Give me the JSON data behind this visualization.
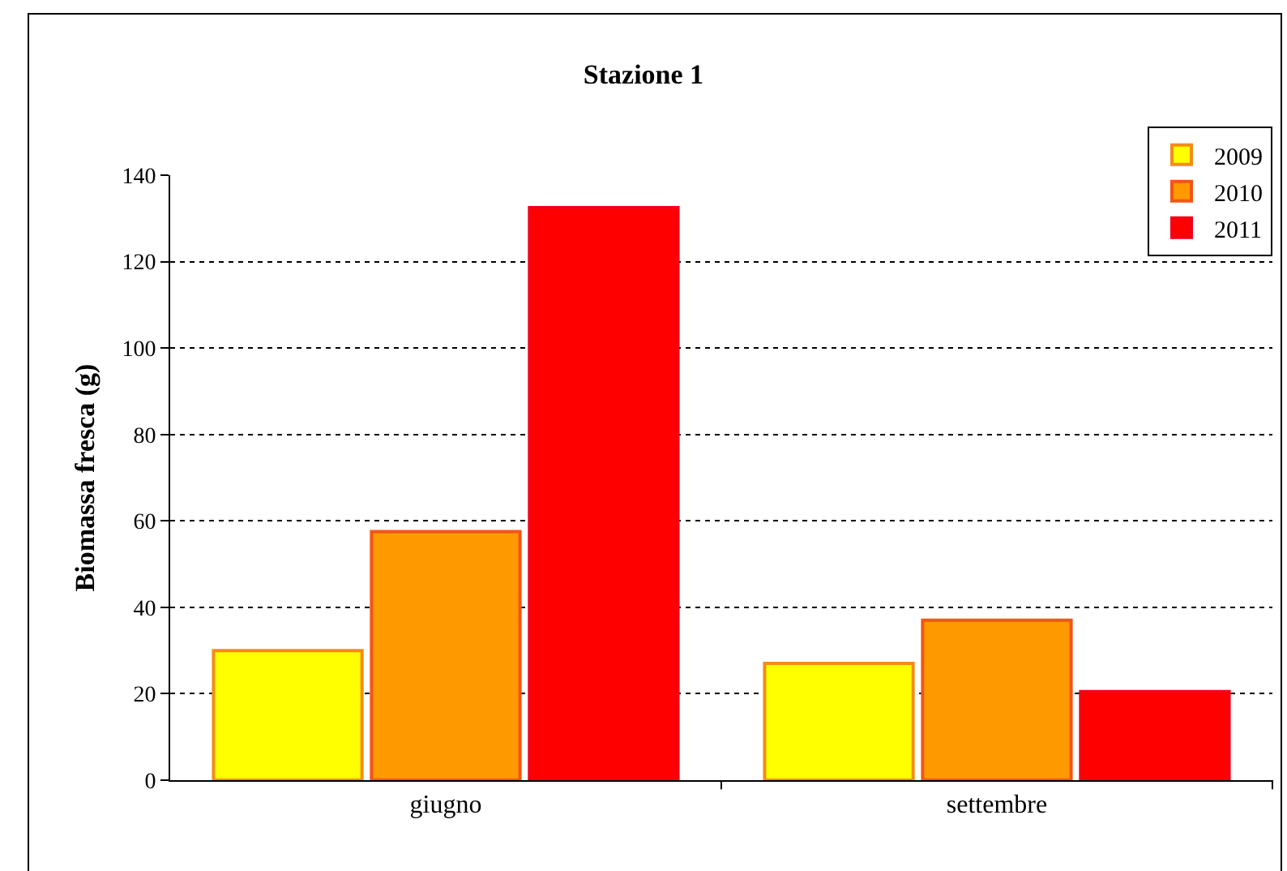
{
  "chart_data": {
    "type": "bar",
    "title": "Stazione 1",
    "ylabel": "Biomassa fresca (g)",
    "categories": [
      "giugno",
      "settembre"
    ],
    "series": [
      {
        "name": "2009",
        "color": "#ffff00",
        "values": [
          30,
          27
        ]
      },
      {
        "name": "2010",
        "color": "#ff9900",
        "values": [
          57.5,
          37
        ]
      },
      {
        "name": "2011",
        "color": "#ff0000",
        "values": [
          132.5,
          20.5
        ]
      }
    ],
    "ylim": [
      0,
      140
    ],
    "yticks": [
      0,
      20,
      40,
      60,
      80,
      100,
      120,
      140
    ],
    "grid": "y",
    "legend": "top right"
  }
}
